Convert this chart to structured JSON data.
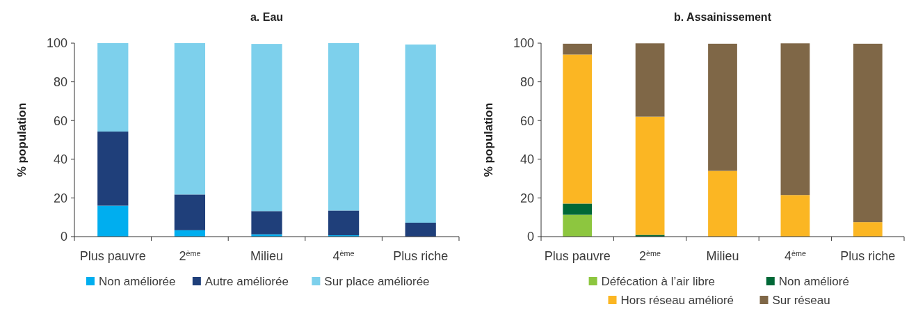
{
  "chart_data": [
    {
      "type": "bar",
      "title": "a. Eau",
      "ylabel": "% population",
      "categories": [
        "Plus pauvre",
        "2$^{ème}$",
        "Milieu",
        "4$^{ème}$",
        "Plus riche"
      ],
      "stacked": true,
      "ylim": [
        0,
        100
      ],
      "yticks": [
        0,
        20,
        40,
        60,
        80,
        100
      ],
      "legend": "bottom",
      "series": [
        {
          "name": "Non améliorée",
          "color": "#00aeef",
          "values": [
            16,
            3.3,
            1.2,
            0.7,
            null
          ]
        },
        {
          "name": "Autre améliorée",
          "color": "#1f3f7a",
          "values": [
            38.3,
            18.5,
            12,
            12.8,
            7.2
          ]
        },
        {
          "name": "Sur place améliorée",
          "color": "#7dd0ec",
          "values": [
            45.7,
            78.2,
            86.4,
            86.5,
            92.1
          ]
        }
      ]
    },
    {
      "type": "bar",
      "title": "b. Assainissement",
      "ylabel": "% population",
      "categories": [
        "Plus pauvre",
        "2$^{ème}$",
        "Milieu",
        "4$^{ème}$",
        "Plus riche"
      ],
      "stacked": true,
      "ylim": [
        0,
        100
      ],
      "yticks": [
        0,
        20,
        40,
        60,
        80,
        100
      ],
      "legend": "bottom",
      "series": [
        {
          "name": "Défécation à l’air libre",
          "color": "#8dc63f",
          "values": [
            11.3,
            0,
            0,
            0,
            0
          ]
        },
        {
          "name": "Non amélioré",
          "color": "#006837",
          "values": [
            5.8,
            0.9,
            0,
            0,
            0
          ]
        },
        {
          "name": "Hors réseau amélioré",
          "color": "#fbb623",
          "values": [
            77,
            61.1,
            34,
            21.5,
            7.5
          ]
        },
        {
          "name": "Sur réseau",
          "color": "#7f6747",
          "values": [
            5.6,
            37.9,
            65.7,
            78.4,
            92.2
          ]
        }
      ]
    }
  ]
}
